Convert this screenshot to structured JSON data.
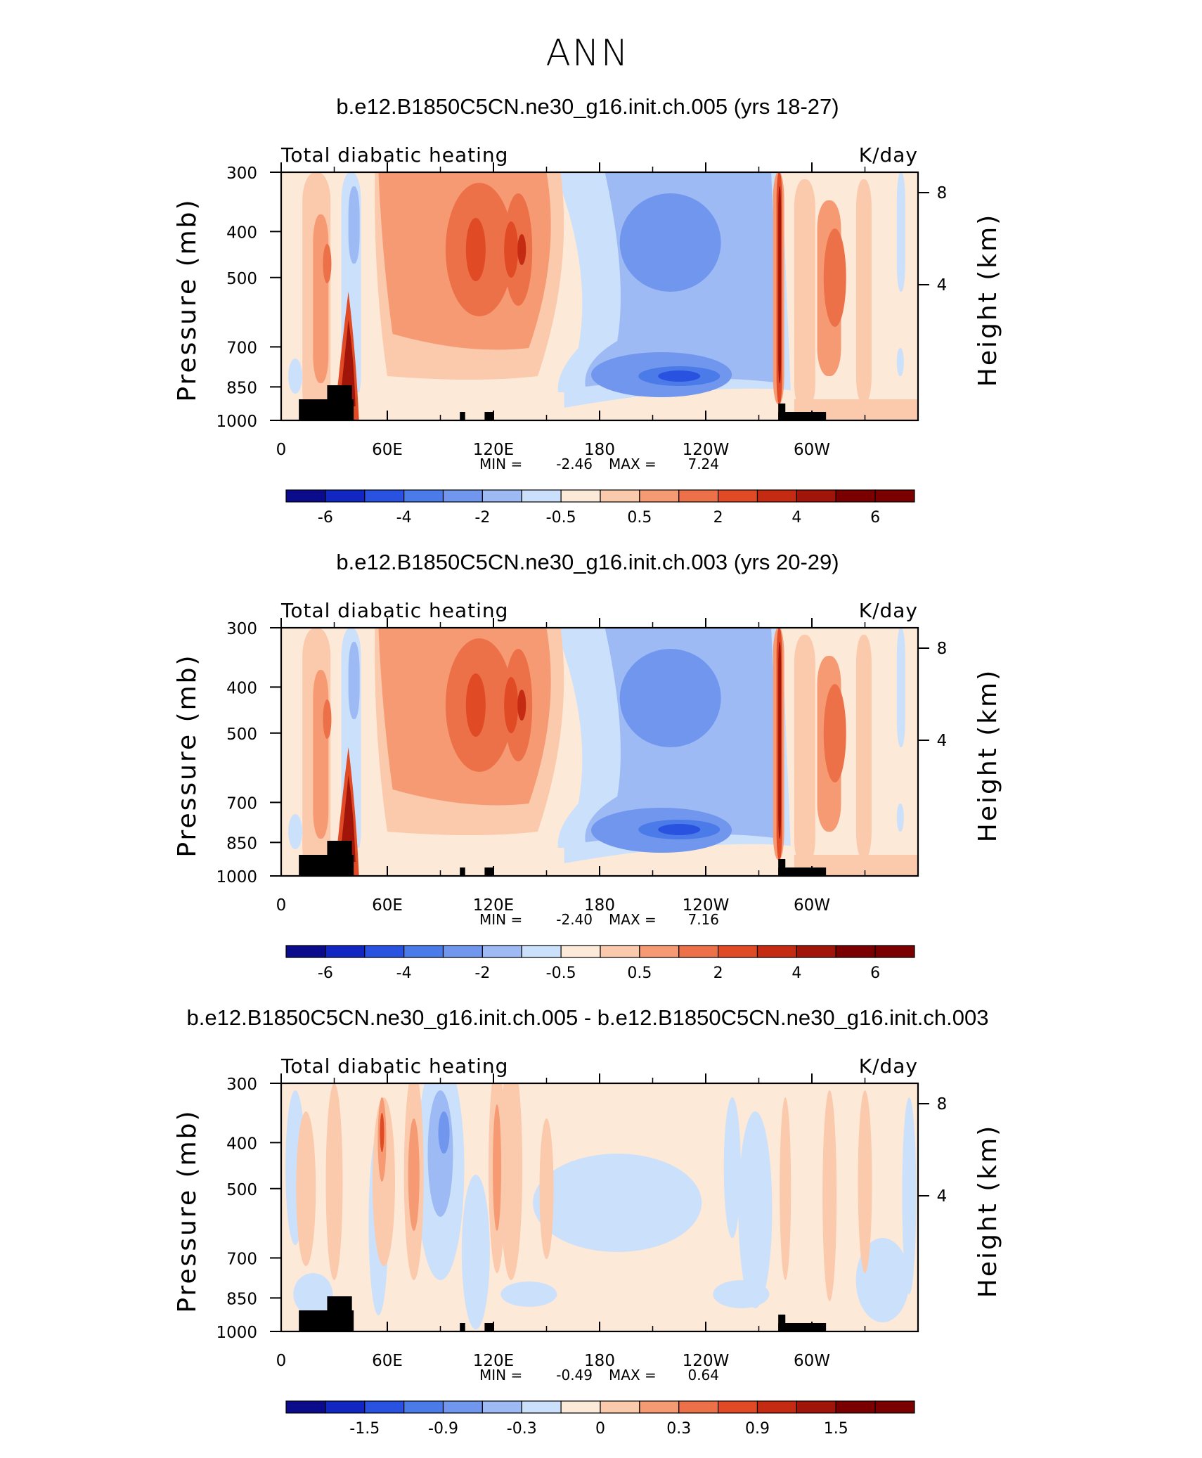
{
  "figure_title": "ANN",
  "chart_data": [
    {
      "type": "contour",
      "title": "b.e12.B1850C5CN.ne30_g16.init.ch.005 (yrs 18-27)",
      "left_label": "Total diabatic heating",
      "right_label": "K/day",
      "ylabel": "Pressure (mb)",
      "y2label": "Height (km)",
      "x_ticks": [
        "0",
        "60E",
        "120E",
        "180",
        "120W",
        "60W"
      ],
      "y_ticks": [
        "300",
        "400",
        "500",
        "700",
        "850",
        "1000"
      ],
      "y2_ticks": [
        "8",
        "4"
      ],
      "min_label": "MIN =",
      "min": "-2.46",
      "max_label": "MAX =",
      "max": "7.24",
      "colorbar_labels": [
        "-6",
        "-4",
        "-2",
        "-0.5",
        "0.5",
        "2",
        "4",
        "6"
      ],
      "levels": [
        -6,
        -5,
        -4,
        -3,
        -2,
        -1,
        -0.5,
        0.5,
        1,
        2,
        3,
        4,
        5,
        6
      ]
    },
    {
      "type": "contour",
      "title": "b.e12.B1850C5CN.ne30_g16.init.ch.003 (yrs 20-29)",
      "left_label": "Total diabatic heating",
      "right_label": "K/day",
      "ylabel": "Pressure (mb)",
      "y2label": "Height (km)",
      "x_ticks": [
        "0",
        "60E",
        "120E",
        "180",
        "120W",
        "60W"
      ],
      "y_ticks": [
        "300",
        "400",
        "500",
        "700",
        "850",
        "1000"
      ],
      "y2_ticks": [
        "8",
        "4"
      ],
      "min_label": "MIN =",
      "min": "-2.40",
      "max_label": "MAX =",
      "max": "7.16",
      "colorbar_labels": [
        "-6",
        "-4",
        "-2",
        "-0.5",
        "0.5",
        "2",
        "4",
        "6"
      ],
      "levels": [
        -6,
        -5,
        -4,
        -3,
        -2,
        -1,
        -0.5,
        0.5,
        1,
        2,
        3,
        4,
        5,
        6
      ]
    },
    {
      "type": "contour",
      "title": "b.e12.B1850C5CN.ne30_g16.init.ch.005 - b.e12.B1850C5CN.ne30_g16.init.ch.003",
      "left_label": "Total diabatic heating",
      "right_label": "K/day",
      "ylabel": "Pressure (mb)",
      "y2label": "Height (km)",
      "x_ticks": [
        "0",
        "60E",
        "120E",
        "180",
        "120W",
        "60W"
      ],
      "y_ticks": [
        "300",
        "400",
        "500",
        "700",
        "850",
        "1000"
      ],
      "y2_ticks": [
        "8",
        "4"
      ],
      "min_label": "MIN =",
      "min": "-0.49",
      "max_label": "MAX =",
      "max": "0.64",
      "colorbar_labels": [
        "-1.5",
        "-0.9",
        "-0.3",
        "0",
        "0.3",
        "0.9",
        "1.5"
      ],
      "levels": [
        -1.8,
        -1.5,
        -1.2,
        -0.9,
        -0.6,
        -0.3,
        0,
        0.3,
        0.6,
        0.9,
        1.2,
        1.5,
        1.8
      ]
    }
  ],
  "colors": {
    "palette": [
      "#0a0c8c",
      "#1226c2",
      "#2a52e0",
      "#4a7be9",
      "#7096ee",
      "#9dbaf5",
      "#cbe0fb",
      "#fde9d8",
      "#fbc9ac",
      "#f69a74",
      "#ec7149",
      "#e04a24",
      "#c42b12",
      "#a0140a",
      "#7a0000"
    ],
    "topography": "#000000"
  }
}
